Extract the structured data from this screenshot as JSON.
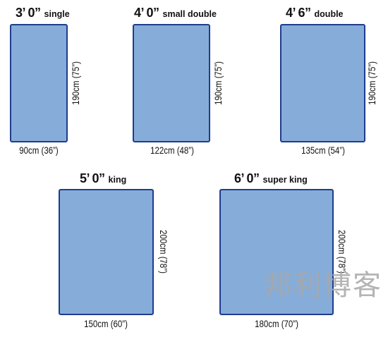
{
  "beds": [
    {
      "size": "3’ 0”",
      "name": "single",
      "width": "90cm (36”)",
      "length": "190cm (75”)"
    },
    {
      "size": "4’ 0”",
      "name": "small double",
      "width": "122cm (48”)",
      "length": "190cm (75”)"
    },
    {
      "size": "4’ 6”",
      "name": "double",
      "width": "135cm (54”)",
      "length": "190cm (75”)"
    },
    {
      "size": "5’ 0”",
      "name": "king",
      "width": "150cm (60”)",
      "length": "200cm (78”)"
    },
    {
      "size": "6’ 0”",
      "name": "super king",
      "width": "180cm (70”)",
      "length": "200cm (78”)"
    }
  ],
  "watermark": "邦利博客",
  "colors": {
    "bed_fill": "#86add9",
    "bed_border": "#1f3c8e",
    "text": "#111111"
  }
}
